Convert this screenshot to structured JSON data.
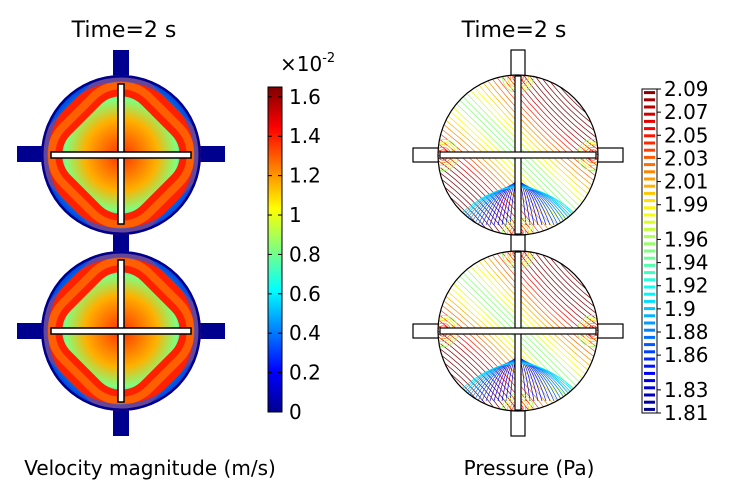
{
  "chart_data": [
    {
      "type": "heatmap",
      "title": "Time=2 s",
      "xlabel": "Velocity magnitude (m/s)",
      "colorbar": {
        "multiplier": "×10",
        "exponent": "-2",
        "ticks": [
          "1.6",
          "1.4",
          "1.2",
          "1",
          "0.8",
          "0.6",
          "0.4",
          "0.2",
          "0"
        ],
        "tick_values": [
          1.6,
          1.4,
          1.2,
          1.0,
          0.8,
          0.6,
          0.4,
          0.2,
          0.0
        ],
        "range": [
          0,
          1.65
        ]
      }
    },
    {
      "type": "contour",
      "title": "Time=2 s",
      "xlabel": "Pressure (Pa)",
      "colorbar": {
        "ticks": [
          "2.09",
          "2.07",
          "2.05",
          "2.03",
          "2.01",
          "1.99",
          "1.96",
          "1.94",
          "1.92",
          "1.9",
          "1.88",
          "1.86",
          "1.83",
          "1.81"
        ],
        "tick_values": [
          2.09,
          2.07,
          2.05,
          2.03,
          2.01,
          1.99,
          1.96,
          1.94,
          1.92,
          1.9,
          1.88,
          1.86,
          1.83,
          1.81
        ],
        "range": [
          1.81,
          2.09
        ]
      }
    }
  ]
}
